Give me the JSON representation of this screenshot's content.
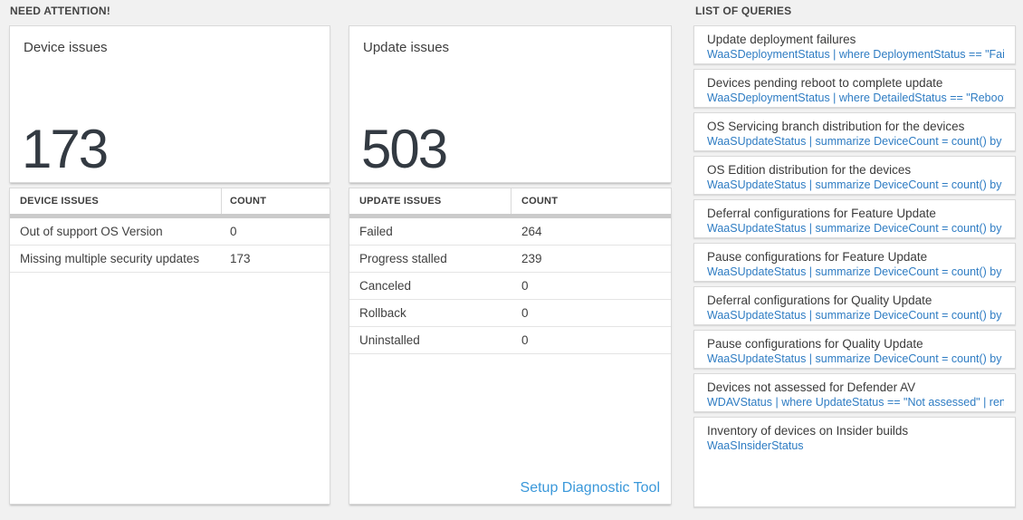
{
  "colors": {
    "page_bg": "#f1f1f1",
    "card_border": "#d9d9d9",
    "table_separator": "#cbcbcb",
    "query_link": "#2e7cc3",
    "setup_link": "#3a98da",
    "big_number": "#333a42"
  },
  "need_attention": {
    "label": "NEED ATTENTION!",
    "device_card": {
      "title": "Device issues",
      "count": "173"
    },
    "device_table": {
      "header": {
        "issue": "DEVICE ISSUES",
        "count": "COUNT"
      },
      "rows": [
        {
          "label": "Out of support OS Version",
          "count": "0"
        },
        {
          "label": "Missing multiple security updates",
          "count": "173"
        }
      ]
    },
    "update_card": {
      "title": "Update issues",
      "count": "503"
    },
    "update_table": {
      "header": {
        "issue": "UPDATE ISSUES",
        "count": "COUNT"
      },
      "rows": [
        {
          "label": "Failed",
          "count": "264"
        },
        {
          "label": "Progress stalled",
          "count": "239"
        },
        {
          "label": "Canceled",
          "count": "0"
        },
        {
          "label": "Rollback",
          "count": "0"
        },
        {
          "label": "Uninstalled",
          "count": "0"
        }
      ],
      "footer_link": "Setup Diagnostic Tool"
    }
  },
  "queries": {
    "label": "LIST OF QUERIES",
    "items": [
      {
        "title": "Update deployment failures",
        "query": "WaaSDeploymentStatus | where DeploymentStatus == \"Failed\" |..."
      },
      {
        "title": "Devices pending reboot to complete update",
        "query": "WaaSDeploymentStatus | where DetailedStatus == \"Reboot pend..."
      },
      {
        "title": "OS Servicing branch distribution for the devices",
        "query": "WaaSUpdateStatus | summarize DeviceCount = count() by OSSer..."
      },
      {
        "title": "OS Edition distribution for the devices",
        "query": "WaaSUpdateStatus | summarize DeviceCount = count() by OSEdit..."
      },
      {
        "title": "Deferral configurations for Feature Update",
        "query": "WaaSUpdateStatus | summarize DeviceCount = count() by Featur..."
      },
      {
        "title": "Pause configurations for Feature Update",
        "query": "WaaSUpdateStatus | summarize DeviceCount = count() by Featur..."
      },
      {
        "title": "Deferral configurations for Quality Update",
        "query": "WaaSUpdateStatus | summarize DeviceCount = count() by Qualit..."
      },
      {
        "title": "Pause configurations for Quality Update",
        "query": "WaaSUpdateStatus | summarize DeviceCount = count() by Qualit..."
      },
      {
        "title": "Devices not assessed for Defender AV",
        "query": "WDAVStatus | where UpdateStatus == \"Not assessed\" | render ta..."
      },
      {
        "title": "Inventory of devices on Insider builds",
        "query": "WaaSInsiderStatus"
      }
    ]
  }
}
